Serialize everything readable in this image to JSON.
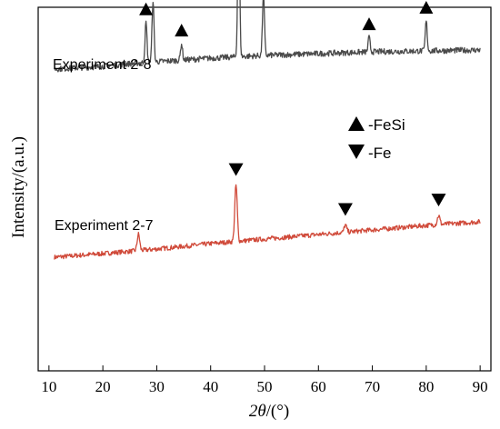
{
  "chart_data": {
    "type": "line",
    "xlabel_italic": "2θ",
    "xlabel_unit": "/(°)",
    "ylabel": "Intensity/(a.u.)",
    "xlim": [
      8,
      92
    ],
    "xticks": [
      10,
      20,
      30,
      40,
      50,
      60,
      70,
      80,
      90
    ],
    "grid": false,
    "legend_position": "top-right",
    "legend": [
      {
        "marker": "triangle-up",
        "label": "-FeSi"
      },
      {
        "marker": "triangle-down",
        "label": "-Fe"
      }
    ],
    "series": [
      {
        "name": "Experiment 2-8",
        "color": "#d04a3a",
        "baseline": [
          [
            11,
            13
          ],
          [
            20,
            17
          ],
          [
            30,
            22
          ],
          [
            40,
            28
          ],
          [
            50,
            33
          ],
          [
            60,
            38
          ],
          [
            70,
            43
          ],
          [
            80,
            48
          ],
          [
            90,
            52
          ]
        ],
        "peaks": [
          {
            "x": 26.6,
            "height": 18,
            "marker": "none"
          },
          {
            "x": 44.7,
            "height": 62,
            "marker": "triangle-down"
          },
          {
            "x": 65.0,
            "height": 8,
            "marker": "triangle-down"
          },
          {
            "x": 82.3,
            "height": 10,
            "marker": "triangle-down"
          }
        ]
      },
      {
        "name": "Experiment 2-7",
        "color": "#4a4a4a",
        "baseline": [
          [
            11,
            2
          ],
          [
            20,
            5
          ],
          [
            25,
            8
          ],
          [
            30,
            10
          ],
          [
            40,
            14
          ],
          [
            50,
            17
          ],
          [
            60,
            19
          ],
          [
            70,
            21
          ],
          [
            80,
            22
          ],
          [
            90,
            23
          ]
        ],
        "peaks": [
          {
            "x": 28.0,
            "height": 44,
            "marker": "triangle-up"
          },
          {
            "x": 29.3,
            "height": 68,
            "marker": "none"
          },
          {
            "x": 34.6,
            "height": 18,
            "marker": "triangle-up"
          },
          {
            "x": 45.2,
            "height": 172,
            "marker": "triangle-up"
          },
          {
            "x": 49.8,
            "height": 68,
            "marker": "triangle-up"
          },
          {
            "x": 69.4,
            "height": 16,
            "marker": "triangle-up"
          },
          {
            "x": 80.0,
            "height": 33,
            "marker": "triangle-up"
          }
        ]
      }
    ]
  }
}
